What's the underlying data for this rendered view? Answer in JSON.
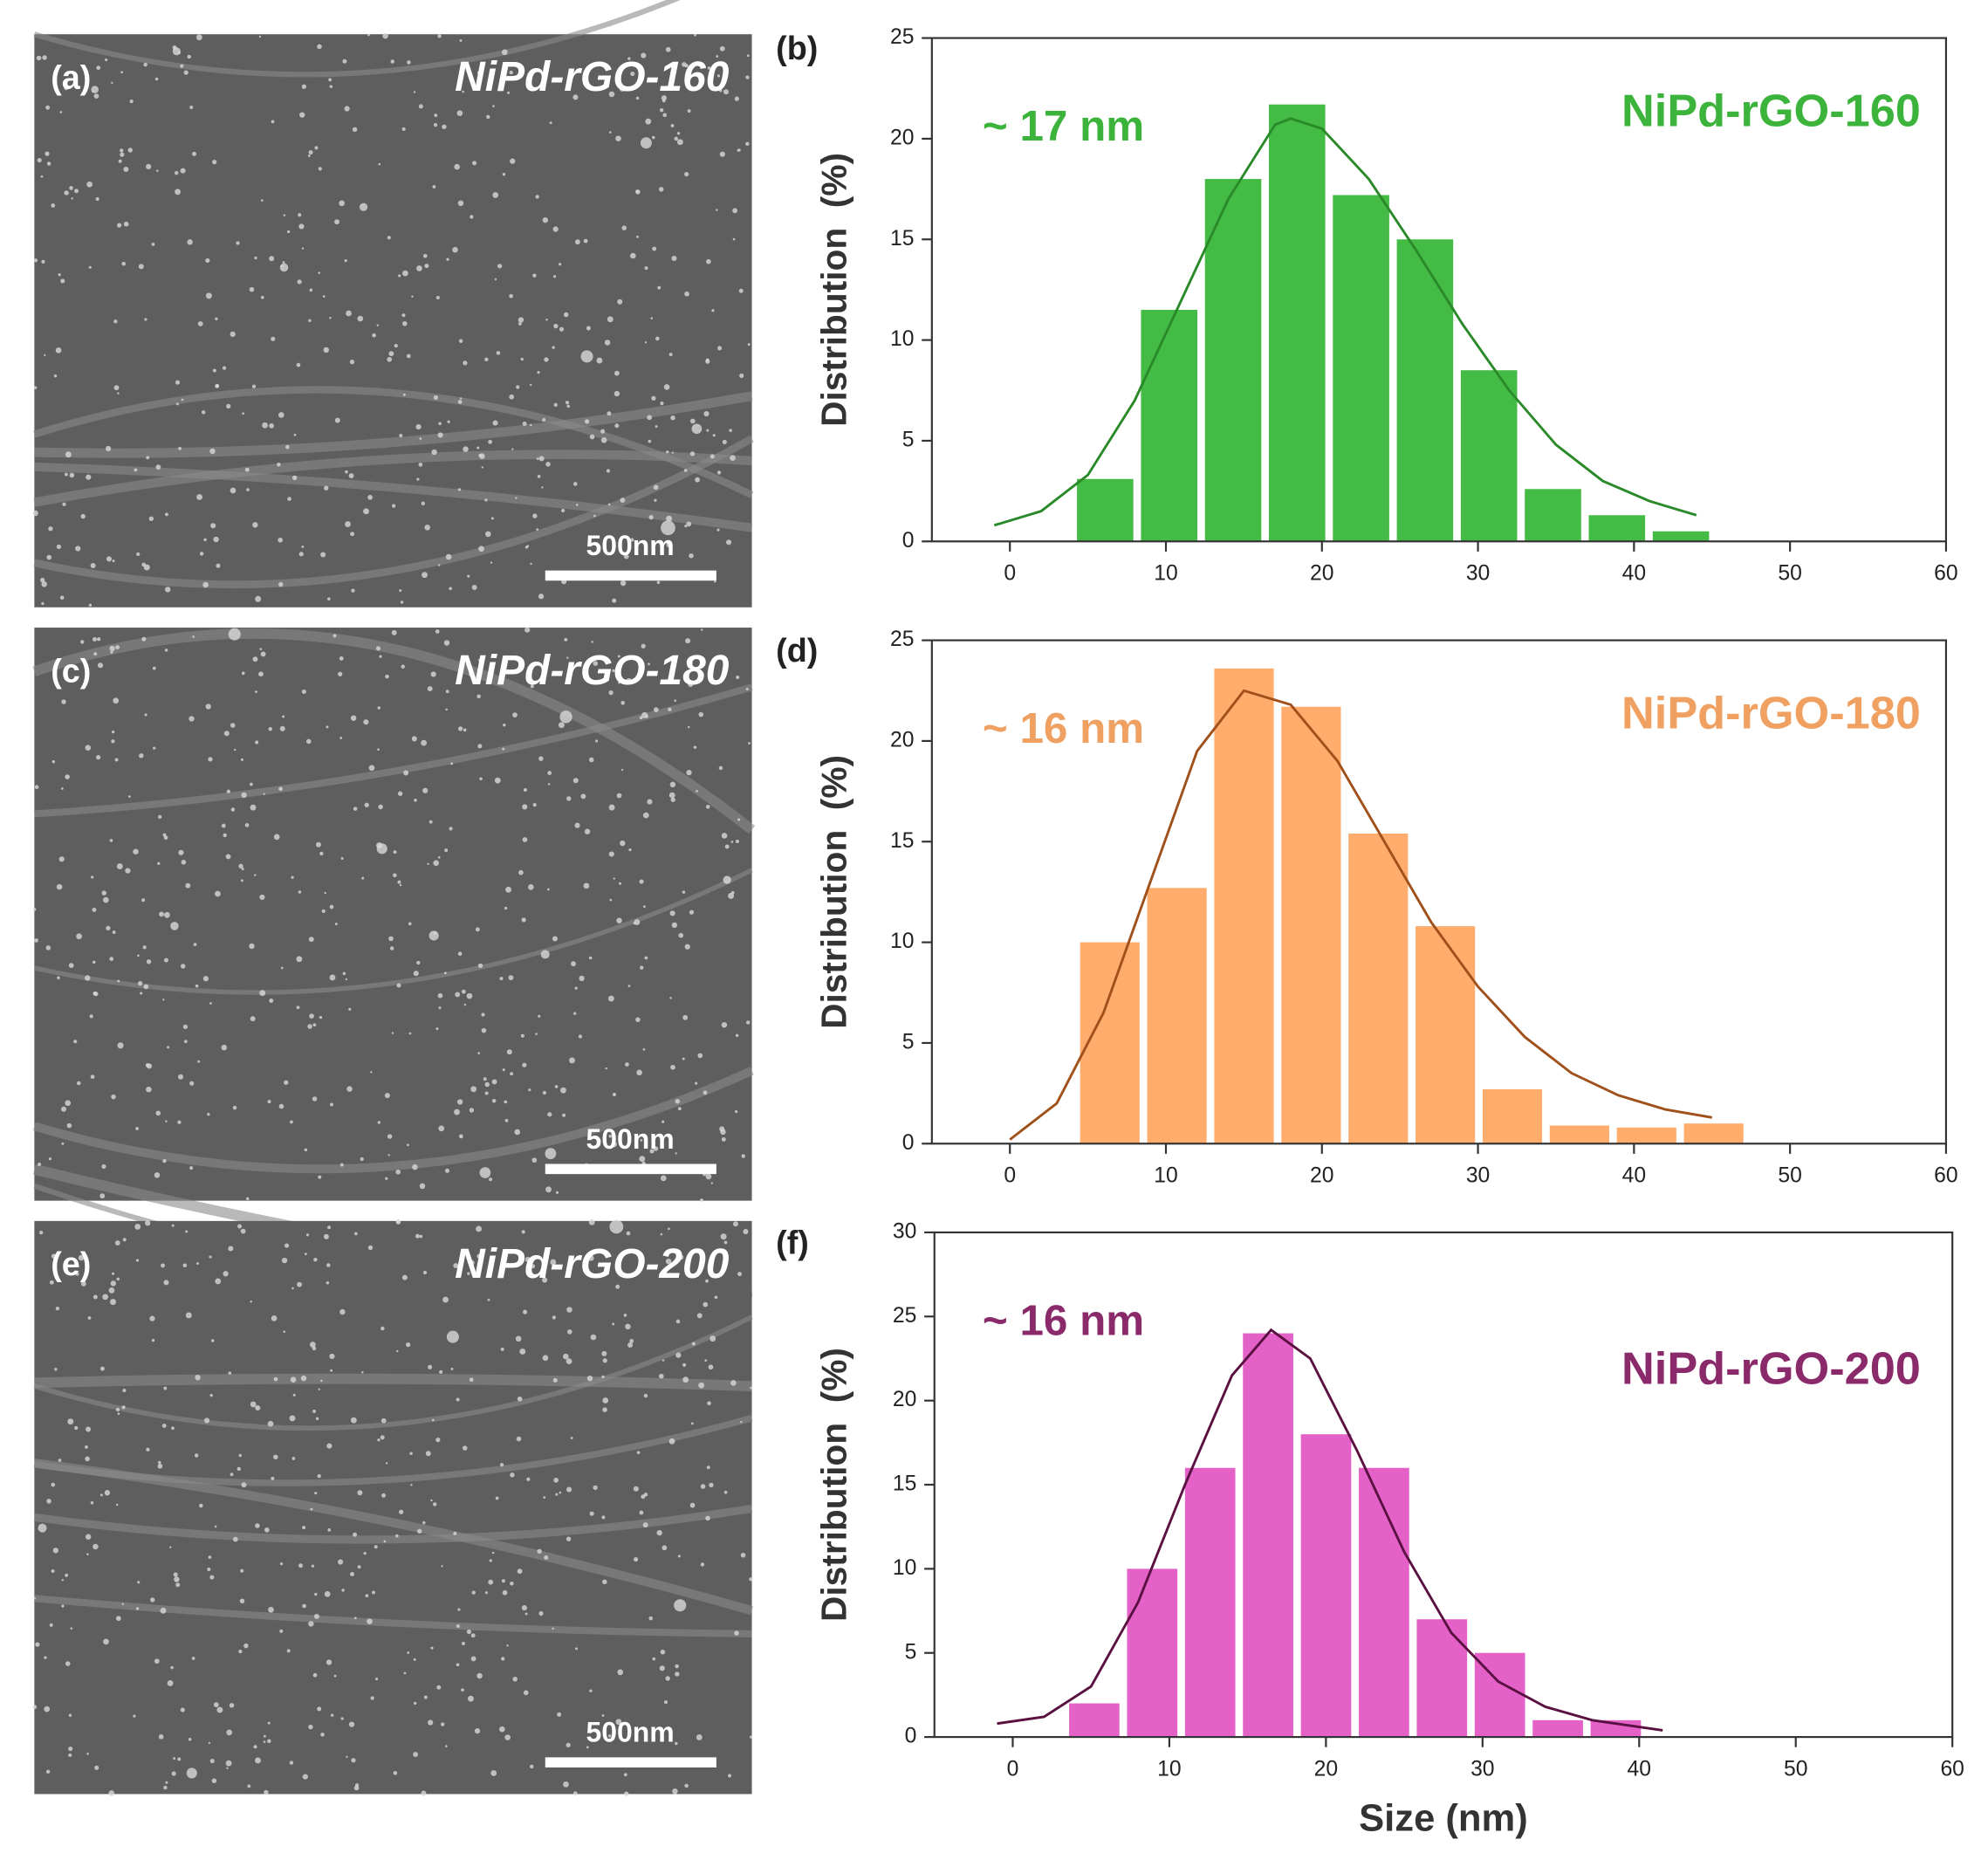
{
  "panels": [
    {
      "label": "(a)",
      "title": "NiPd-rGO-160",
      "scale_bar": "500nm"
    },
    {
      "label": "(c)",
      "title": "NiPd-rGO-180",
      "scale_bar": "500nm"
    },
    {
      "label": "(e)",
      "title": "NiPd-rGO-200",
      "scale_bar": "500nm"
    }
  ],
  "chart_data": [
    {
      "type": "histogram",
      "panel_label": "(b)",
      "title": "NiPd-rGO-160",
      "annotation": "~ 17 nm",
      "y_label": "Distribution  (%)",
      "bins": [
        4.3,
        8.4,
        12.5,
        16.6,
        20.7,
        24.8,
        28.9,
        33,
        37.1,
        41.2,
        45.3
      ],
      "counts": [
        3.1,
        11.5,
        18,
        21.7,
        17.2,
        15,
        8.5,
        2.6,
        1.3,
        0.5
      ],
      "color": "#44bb44",
      "text_color": "#3cb43c",
      "fit": {
        "x": [
          -1,
          2,
          5,
          8,
          11,
          14,
          17,
          18,
          20,
          23,
          26,
          29,
          32,
          35,
          38,
          41,
          44
        ],
        "y": [
          0.8,
          1.5,
          3.3,
          7,
          12,
          17,
          20.7,
          21,
          20.5,
          18,
          14.5,
          10.8,
          7.5,
          4.8,
          3,
          2,
          1.3
        ],
        "color": "#2a8a2a"
      },
      "xlim": [
        -5,
        60
      ],
      "xticks": [
        0,
        10,
        20,
        30,
        40,
        50,
        60
      ],
      "ylim": [
        0,
        25
      ],
      "yticks": [
        0,
        5,
        10,
        15,
        20,
        25
      ]
    },
    {
      "type": "histogram",
      "panel_label": "(d)",
      "title": "NiPd-rGO-180",
      "annotation": "~ 16 nm",
      "y_label": "Distribution  (%)",
      "bins": [
        4.5,
        8.8,
        13.1,
        17.4,
        21.7,
        26,
        30.3,
        34.6,
        38.9,
        43.2,
        47.5
      ],
      "counts": [
        10,
        12.7,
        23.6,
        21.7,
        15.4,
        10.8,
        2.7,
        0.9,
        0.8,
        1.0
      ],
      "color": "#ffac6c",
      "text_color": "#f0a060",
      "fit": {
        "x": [
          0,
          3,
          6,
          9,
          12,
          15,
          18,
          21,
          24,
          27,
          30,
          33,
          36,
          39,
          42,
          45
        ],
        "y": [
          0.2,
          2,
          6.5,
          13,
          19.5,
          22.5,
          21.8,
          19,
          15,
          11,
          7.8,
          5.3,
          3.5,
          2.4,
          1.7,
          1.3
        ],
        "color": "#a0501a"
      },
      "xlim": [
        -5,
        60
      ],
      "xticks": [
        0,
        10,
        20,
        30,
        40,
        50,
        60
      ],
      "ylim": [
        0,
        25
      ],
      "yticks": [
        0,
        5,
        10,
        15,
        20,
        25
      ]
    },
    {
      "type": "histogram",
      "panel_label": "(f)",
      "title": "NiPd-rGO-200",
      "annotation": "~ 16 nm",
      "y_label": "Distribution  (%)",
      "x_label": "Size (nm)",
      "bins": [
        3.6,
        7.3,
        11,
        14.7,
        18.4,
        22.1,
        25.8,
        29.5,
        33.2,
        36.9,
        40.6
      ],
      "counts": [
        2,
        10,
        16,
        24,
        18,
        16,
        7,
        5,
        1,
        1
      ],
      "color": "#e462c8",
      "text_color": "#8a2a6a",
      "fit": {
        "x": [
          -1,
          2,
          5,
          8,
          11,
          14,
          16.5,
          19,
          22,
          25,
          28,
          31,
          34,
          37,
          41.5
        ],
        "y": [
          0.8,
          1.2,
          3,
          8,
          15,
          21.5,
          24.2,
          22.5,
          17,
          11,
          6.2,
          3.3,
          1.8,
          1,
          0.4
        ],
        "color": "#5a1040"
      },
      "xlim": [
        -5,
        60
      ],
      "xticks": [
        0,
        10,
        20,
        30,
        40,
        50,
        60
      ],
      "ylim": [
        0,
        30
      ],
      "yticks": [
        0,
        5,
        10,
        15,
        20,
        25,
        30
      ]
    }
  ]
}
